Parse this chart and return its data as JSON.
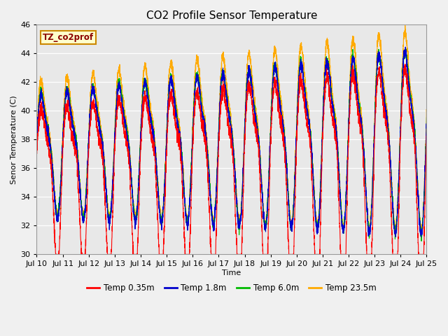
{
  "title": "CO2 Profile Sensor Temperature",
  "xlabel": "Time",
  "ylabel": "Senor Temperature (C)",
  "ylim": [
    30,
    46
  ],
  "yticks": [
    30,
    32,
    34,
    36,
    38,
    40,
    42,
    44,
    46
  ],
  "legend_label": "TZ_co2prof",
  "series_labels": [
    "Temp 0.35m",
    "Temp 1.8m",
    "Temp 6.0m",
    "Temp 23.5m"
  ],
  "series_colors": [
    "#ff0000",
    "#0000cc",
    "#00bb00",
    "#ffaa00"
  ],
  "background_color": "#e8e8e8",
  "plot_bg_color": "#e8e8e8",
  "fig_bg_color": "#f0f0f0",
  "xtick_labels": [
    "Jul 10",
    "Jul 11",
    "Jul 12",
    "Jul 13",
    "Jul 14",
    "Jul 15",
    "Jul 16",
    "Jul 17",
    "Jul 18",
    "Jul 19",
    "Jul 20",
    "Jul 21",
    "Jul 22",
    "Jul 23",
    "Jul 24",
    "Jul 25"
  ],
  "title_fontsize": 11,
  "axis_fontsize": 8,
  "legend_fontsize": 8.5,
  "figsize": [
    6.4,
    4.8
  ],
  "dpi": 100
}
